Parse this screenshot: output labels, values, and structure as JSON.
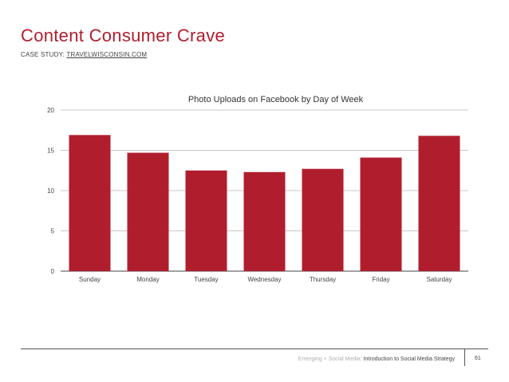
{
  "slide": {
    "title": "Content Consumer Crave",
    "subtitle_prefix": "CASE STUDY:",
    "subtitle_link": "TRAVELWISCONSIN.COM"
  },
  "footer": {
    "brand": "Emerging + Social Media:",
    "course": "Introduction to Social Media Strategy",
    "page_number": "61"
  },
  "colors": {
    "accent": "#b01e2e",
    "bar": "#b01e2e",
    "grid": "#c8c8c8"
  },
  "chart_data": {
    "type": "bar",
    "title": "Photo Uploads on Facebook by Day of Week",
    "categories": [
      "Sunday",
      "Monday",
      "Tuesday",
      "Wednesday",
      "Thursday",
      "Friday",
      "Saturday"
    ],
    "values": [
      16.9,
      14.7,
      12.5,
      12.3,
      12.7,
      14.1,
      16.8
    ],
    "ylim": [
      0,
      20
    ],
    "yticks": [
      0,
      5,
      10,
      15,
      20
    ],
    "xlabel": "",
    "ylabel": "",
    "grid": true
  }
}
